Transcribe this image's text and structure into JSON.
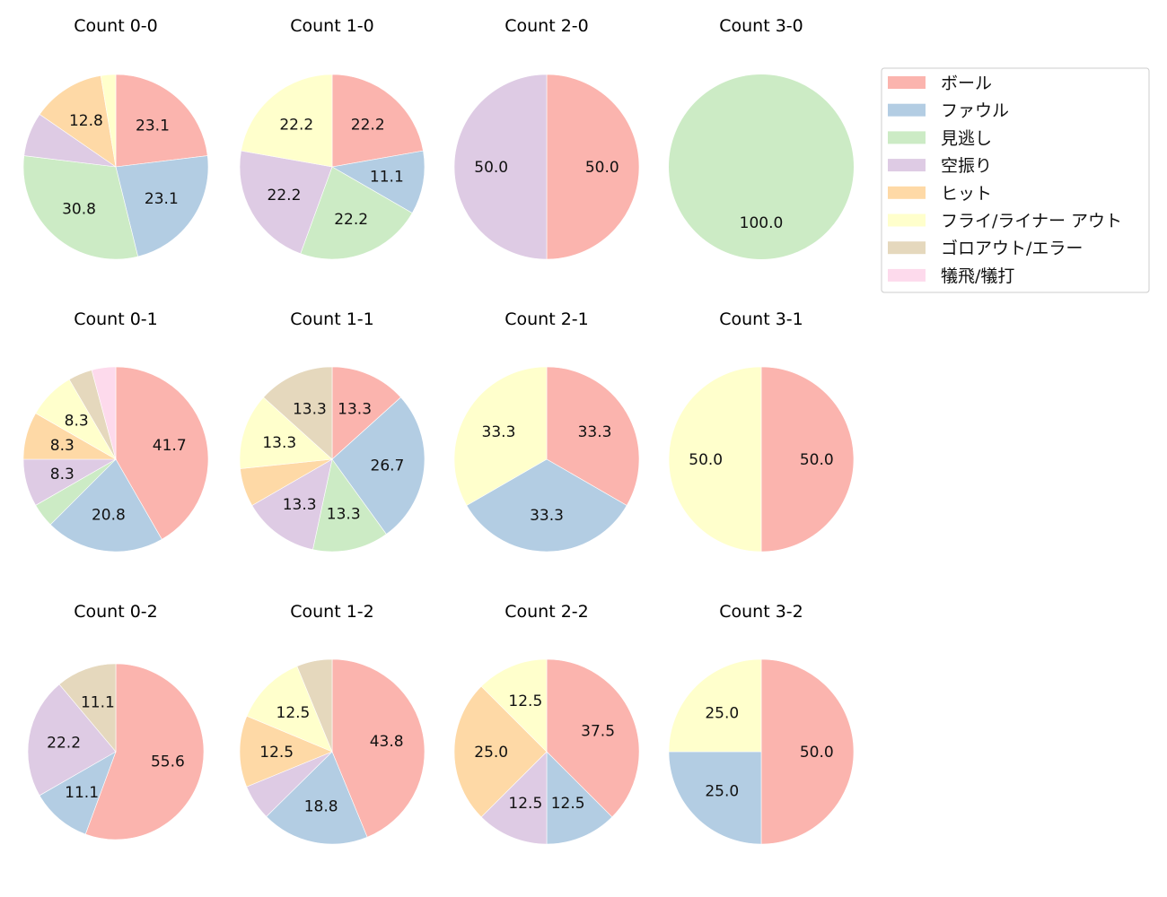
{
  "legend": {
    "items": [
      {
        "label": "ボール",
        "color": "#fbb4ae"
      },
      {
        "label": "ファウル",
        "color": "#b3cde3"
      },
      {
        "label": "見逃し",
        "color": "#ccebc5"
      },
      {
        "label": "空振り",
        "color": "#decbe4"
      },
      {
        "label": "ヒット",
        "color": "#fed9a6"
      },
      {
        "label": "フライ/ライナー アウト",
        "color": "#ffffcc"
      },
      {
        "label": "ゴロアウト/エラー",
        "color": "#e5d8bd"
      },
      {
        "label": "犠飛/犠打",
        "color": "#fddaec"
      }
    ]
  },
  "chart_data": [
    {
      "type": "pie",
      "title": "Count 0-0",
      "categories": [
        "ボール",
        "ファウル",
        "見逃し",
        "空振り",
        "ヒット",
        "フライ/ライナー アウト"
      ],
      "values": [
        23.1,
        23.1,
        30.8,
        7.7,
        12.8,
        2.6
      ],
      "labels": [
        "23.1",
        "23.1",
        "30.8",
        "",
        "12.8",
        ""
      ]
    },
    {
      "type": "pie",
      "title": "Count 1-0",
      "categories": [
        "ボール",
        "ファウル",
        "見逃し",
        "空振り",
        "フライ/ライナー アウト"
      ],
      "values": [
        22.2,
        11.1,
        22.2,
        22.2,
        22.2
      ],
      "labels": [
        "22.2",
        "11.1",
        "22.2",
        "22.2",
        "22.2"
      ]
    },
    {
      "type": "pie",
      "title": "Count 2-0",
      "categories": [
        "ボール",
        "空振り"
      ],
      "values": [
        50.0,
        50.0
      ],
      "labels": [
        "50.0",
        "50.0"
      ]
    },
    {
      "type": "pie",
      "title": "Count 3-0",
      "categories": [
        "見逃し"
      ],
      "values": [
        100.0
      ],
      "labels": [
        "100.0"
      ]
    },
    {
      "type": "pie",
      "title": "Count 0-1",
      "categories": [
        "ボール",
        "ファウル",
        "見逃し",
        "空振り",
        "ヒット",
        "フライ/ライナー アウト",
        "ゴロアウト/エラー",
        "犠飛/犠打"
      ],
      "values": [
        41.7,
        20.8,
        4.2,
        8.3,
        8.3,
        8.3,
        4.2,
        4.2
      ],
      "labels": [
        "41.7",
        "20.8",
        "",
        "8.3",
        "8.3",
        "8.3",
        "",
        ""
      ]
    },
    {
      "type": "pie",
      "title": "Count 1-1",
      "categories": [
        "ボール",
        "ファウル",
        "見逃し",
        "空振り",
        "ヒット",
        "フライ/ライナー アウト",
        "ゴロアウト/エラー"
      ],
      "values": [
        13.3,
        26.7,
        13.3,
        13.3,
        6.7,
        13.3,
        13.3
      ],
      "labels": [
        "13.3",
        "26.7",
        "13.3",
        "13.3",
        "",
        "13.3",
        "13.3"
      ]
    },
    {
      "type": "pie",
      "title": "Count 2-1",
      "categories": [
        "ボール",
        "ファウル",
        "フライ/ライナー アウト"
      ],
      "values": [
        33.3,
        33.3,
        33.3
      ],
      "labels": [
        "33.3",
        "33.3",
        "33.3"
      ]
    },
    {
      "type": "pie",
      "title": "Count 3-1",
      "categories": [
        "ボール",
        "フライ/ライナー アウト"
      ],
      "values": [
        50.0,
        50.0
      ],
      "labels": [
        "50.0",
        "50.0"
      ]
    },
    {
      "type": "pie",
      "title": "Count 0-2",
      "categories": [
        "ボール",
        "ファウル",
        "空振り",
        "ゴロアウト/エラー"
      ],
      "values": [
        55.6,
        11.1,
        22.2,
        11.1
      ],
      "labels": [
        "55.6",
        "11.1",
        "22.2",
        "11.1"
      ]
    },
    {
      "type": "pie",
      "title": "Count 1-2",
      "categories": [
        "ボール",
        "ファウル",
        "空振り",
        "ヒット",
        "フライ/ライナー アウト",
        "ゴロアウト/エラー"
      ],
      "values": [
        43.8,
        18.8,
        6.2,
        12.5,
        12.5,
        6.2
      ],
      "labels": [
        "43.8",
        "18.8",
        "",
        "12.5",
        "12.5",
        ""
      ]
    },
    {
      "type": "pie",
      "title": "Count 2-2",
      "categories": [
        "ボール",
        "ファウル",
        "空振り",
        "ヒット",
        "フライ/ライナー アウト"
      ],
      "values": [
        37.5,
        12.5,
        12.5,
        25.0,
        12.5
      ],
      "labels": [
        "37.5",
        "12.5",
        "12.5",
        "25.0",
        "12.5"
      ]
    },
    {
      "type": "pie",
      "title": "Count 3-2",
      "categories": [
        "ボール",
        "ファウル",
        "フライ/ライナー アウト"
      ],
      "values": [
        50.0,
        25.0,
        25.0
      ],
      "labels": [
        "50.0",
        "25.0",
        "25.0"
      ]
    }
  ]
}
